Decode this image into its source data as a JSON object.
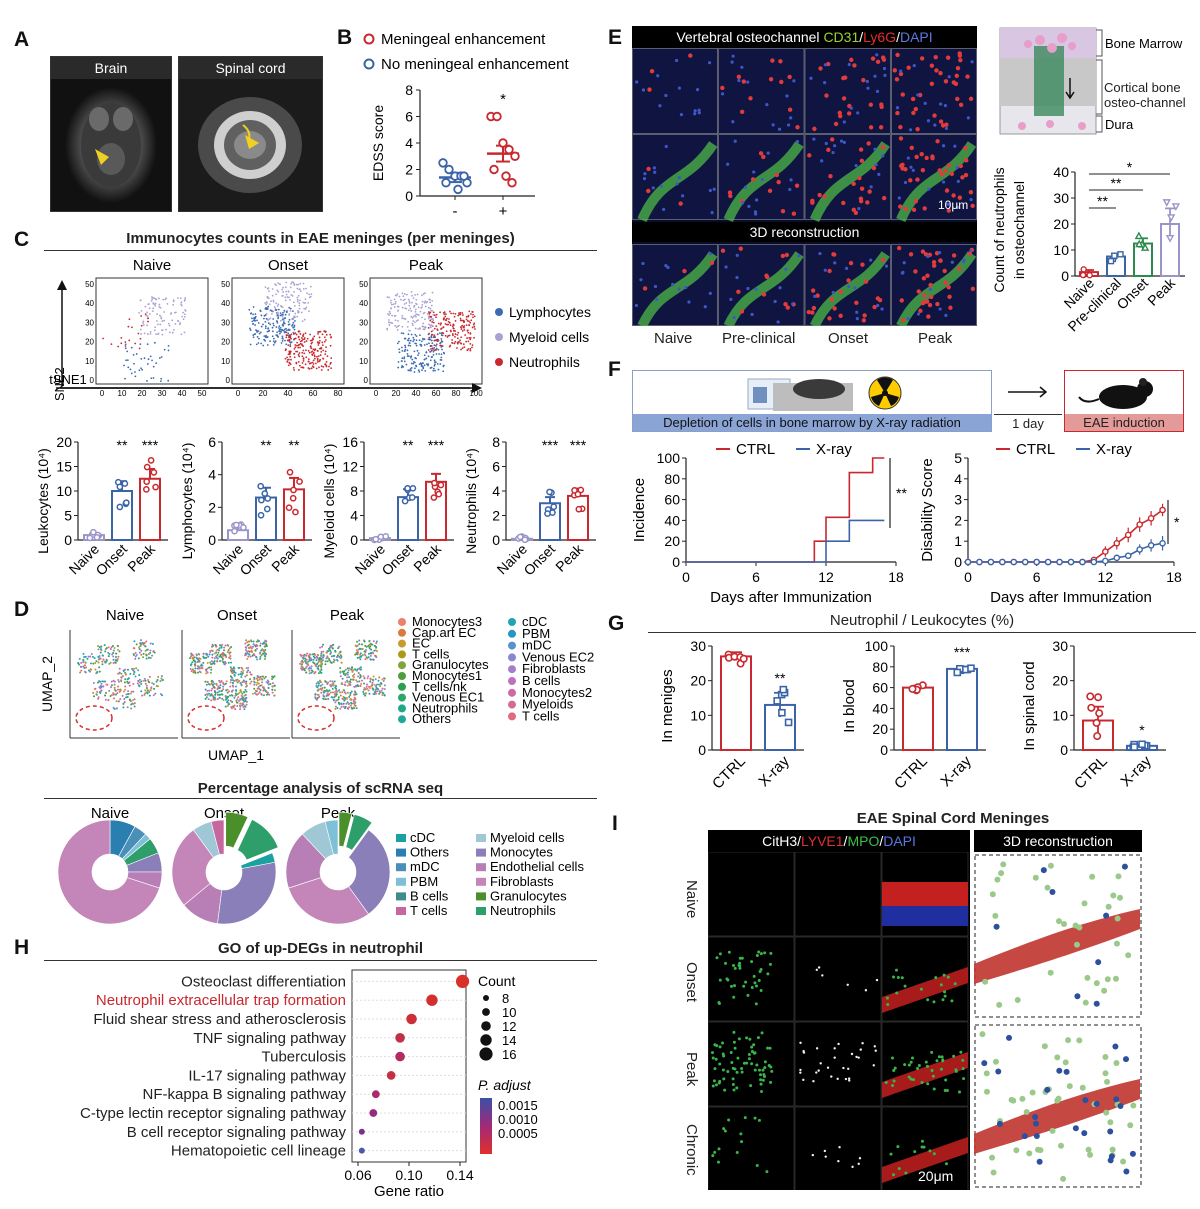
{
  "panel_labels": [
    "A",
    "B",
    "C",
    "D",
    "E",
    "F",
    "G",
    "H",
    "I"
  ],
  "colors": {
    "red": "#c8282e",
    "blue": "#3b64a8",
    "lightblue": "#8d96c8",
    "green": "#2c8a4c",
    "lavender": "#9a95c9",
    "gray": "#666666"
  },
  "A": {
    "brain_label": "Brain",
    "spinal_label": "Spinal cord"
  },
  "B": {
    "legend": [
      "Meningeal enhancement",
      "No meningeal enhancement"
    ],
    "chart_data": {
      "type": "scatter",
      "categories": [
        "-",
        "+"
      ],
      "ylabel": "EDSS score",
      "ylim": [
        0,
        8
      ],
      "yticks": [
        0,
        2,
        4,
        6,
        8
      ],
      "significance": "*",
      "series": [
        {
          "name": "No meningeal enhancement",
          "category": "-",
          "mean": 1.4,
          "sem": 0.35,
          "values": [
            2.5,
            2.0,
            1.5,
            1.5,
            1.0,
            1.0,
            0.5,
            1.5
          ]
        },
        {
          "name": "Meningeal enhancement",
          "category": "+",
          "mean": 3.2,
          "sem": 0.6,
          "values": [
            6.0,
            6.0,
            4.0,
            3.5,
            3.0,
            2.0,
            1.5,
            1.0
          ]
        }
      ]
    }
  },
  "C": {
    "title": "Immunocytes counts in EAE meninges (per meninges)",
    "tsne_groups": [
      "Naive",
      "Onset",
      "Peak"
    ],
    "tsne_xlabel": "tSNE1",
    "tsne_ylabel": "tSNE2",
    "tsne_legend": [
      "Lymphocytes",
      "Myeloid cells",
      "Neutrophils"
    ],
    "tsne_xticks": {
      "naive": [
        "0",
        "10",
        "20",
        "30",
        "40",
        "50"
      ],
      "onset": [
        "0",
        "20",
        "40",
        "60",
        "80"
      ],
      "peak": [
        "0",
        "20",
        "40",
        "60",
        "80",
        "100"
      ]
    },
    "tsne_yticks": [
      "0",
      "10",
      "20",
      "30",
      "40",
      "50"
    ],
    "chart_data": [
      {
        "type": "bar",
        "categories": [
          "Naive",
          "Onset",
          "Peak"
        ],
        "ylabel": "Leukocytes (10⁴)",
        "ylim": [
          0,
          20
        ],
        "yticks": [
          0,
          5,
          10,
          15,
          20
        ],
        "values": [
          1.0,
          10.0,
          12.5
        ],
        "sem": [
          0.3,
          2.0,
          2.0
        ],
        "significance": [
          "",
          "**",
          "***"
        ]
      },
      {
        "type": "bar",
        "categories": [
          "Naive",
          "Onset",
          "Peak"
        ],
        "ylabel": "Lymphocytes (10⁴)",
        "ylim": [
          0,
          6
        ],
        "yticks": [
          0,
          2,
          4,
          6
        ],
        "values": [
          0.6,
          2.6,
          3.1
        ],
        "sem": [
          0.2,
          0.6,
          0.7
        ],
        "significance": [
          "",
          "**",
          "**"
        ]
      },
      {
        "type": "bar",
        "categories": [
          "Naive",
          "Onset",
          "Peak"
        ],
        "ylabel": "Myeloid cells (10⁴)",
        "ylim": [
          0,
          16
        ],
        "yticks": [
          0,
          4,
          8,
          12,
          16
        ],
        "values": [
          0.3,
          7.0,
          9.5
        ],
        "sem": [
          0.2,
          1.3,
          1.3
        ],
        "significance": [
          "",
          "**",
          "***"
        ]
      },
      {
        "type": "bar",
        "categories": [
          "Naive",
          "Onset",
          "Peak"
        ],
        "ylabel": "Neutrophils (10⁴)",
        "ylim": [
          0,
          8
        ],
        "yticks": [
          0,
          2,
          4,
          6,
          8
        ],
        "values": [
          0.1,
          3.0,
          3.6
        ],
        "sem": [
          0.1,
          0.5,
          0.6
        ],
        "significance": [
          "",
          "***",
          "***"
        ]
      }
    ]
  },
  "D": {
    "groups": [
      "Naive",
      "Onset",
      "Peak"
    ],
    "umap_xlabel": "UMAP_1",
    "umap_ylabel": "UMAP_2",
    "legend_col1": [
      {
        "name": "Monocytes3",
        "color": "#e8826b"
      },
      {
        "name": "Cap.art EC",
        "color": "#d97a3a"
      },
      {
        "name": "EC",
        "color": "#c79a2e"
      },
      {
        "name": "T cells",
        "color": "#a99a1e"
      },
      {
        "name": "Granulocytes",
        "color": "#7fa63a"
      },
      {
        "name": "Monocytes1",
        "color": "#4f9e3c"
      },
      {
        "name": "T cells/nk",
        "color": "#2f9e4e"
      },
      {
        "name": "Venous EC1",
        "color": "#2aa86a"
      },
      {
        "name": "Neutrophils",
        "color": "#22a887"
      },
      {
        "name": "Others",
        "color": "#20a89e"
      }
    ],
    "legend_col2": [
      {
        "name": "cDC",
        "color": "#1fa6b5"
      },
      {
        "name": "PBM",
        "color": "#2796c7"
      },
      {
        "name": "mDC",
        "color": "#5a8fd0"
      },
      {
        "name": "Venous EC2",
        "color": "#8a86cf"
      },
      {
        "name": "Fibroblasts",
        "color": "#a67ec8"
      },
      {
        "name": "B cells",
        "color": "#bf70bc"
      },
      {
        "name": "Monocytes2",
        "color": "#cf6aa8"
      },
      {
        "name": "Myeloids",
        "color": "#d66a93"
      },
      {
        "name": "T cells",
        "color": "#df6b7f"
      }
    ],
    "pie_title": "Percentage analysis of scRNA seq",
    "pie_legend_col1": [
      {
        "name": "cDC",
        "color": "#1aa1a0"
      },
      {
        "name": "Others",
        "color": "#2a7fb0"
      },
      {
        "name": "mDC",
        "color": "#4a8fb8"
      },
      {
        "name": "PBM",
        "color": "#7dc0d8"
      },
      {
        "name": "B cells",
        "color": "#3d8b8a"
      },
      {
        "name": "T cells",
        "color": "#c6679f"
      }
    ],
    "pie_legend_col2": [
      {
        "name": "Myeloid cells",
        "color": "#9fc7d6"
      },
      {
        "name": "Monocytes",
        "color": "#8a7fb8"
      },
      {
        "name": "Endothelial cells",
        "color": "#b77fb5"
      },
      {
        "name": "Fibroblasts",
        "color": "#c486b8"
      },
      {
        "name": "Granulocytes",
        "color": "#4a8f2a"
      },
      {
        "name": "Neutrophils",
        "color": "#2e9e6a"
      }
    ]
  },
  "E": {
    "header_parts": [
      "Vertebral osteochannel ",
      "CD31",
      "/",
      "Ly6G",
      "/",
      "DAPI"
    ],
    "scale": "10μm",
    "recon_label": "3D reconstruction",
    "columns": [
      "Naive",
      "Pre-clinical",
      "Onset",
      "Peak"
    ],
    "schematic_labels": [
      "Bone Marrow",
      "Cortical bone osteo-channel",
      "Dura"
    ],
    "chart_data": {
      "type": "bar",
      "categories": [
        "Naive",
        "Pre-clinical",
        "Onset",
        "Peak"
      ],
      "ylabel": "Count of neutrophils in osteochannel",
      "ylim": [
        0,
        40
      ],
      "yticks": [
        0,
        10,
        20,
        30,
        40
      ],
      "values": [
        1.5,
        7.5,
        12.5,
        20
      ],
      "sem": [
        0.8,
        1.2,
        2.0,
        6.0
      ],
      "significance": [
        "**",
        "**",
        "*"
      ]
    }
  },
  "F": {
    "banner_left": "Depletion of cells in bone marrow by X-ray radiation",
    "banner_mid": "1 day",
    "banner_right": "EAE induction",
    "legend": [
      "CTRL",
      "X-ray"
    ],
    "chart_data": [
      {
        "type": "line",
        "title": "",
        "xlabel": "Days after Immunization",
        "ylabel": "Incidence",
        "xlim": [
          0,
          18
        ],
        "ylim": [
          0,
          100
        ],
        "xticks": [
          0,
          6,
          12,
          18
        ],
        "yticks": [
          0,
          20,
          40,
          60,
          80,
          100
        ],
        "significance": "**",
        "series": [
          {
            "name": "CTRL",
            "x": [
              0,
              11,
              11,
              12,
              12,
              14,
              14,
              16,
              16,
              17
            ],
            "y": [
              0,
              0,
              20,
              20,
              43,
              43,
              86,
              86,
              100,
              100
            ]
          },
          {
            "name": "X-ray",
            "x": [
              0,
              12,
              12,
              14,
              14,
              17
            ],
            "y": [
              0,
              0,
              20,
              20,
              40,
              40
            ]
          }
        ]
      },
      {
        "type": "line",
        "title": "",
        "xlabel": "Days after Immunization",
        "ylabel": "Disability Score",
        "xlim": [
          0,
          18
        ],
        "ylim": [
          0,
          5
        ],
        "xticks": [
          0,
          6,
          12,
          18
        ],
        "yticks": [
          0,
          1,
          2,
          3,
          4,
          5
        ],
        "significance": "*",
        "series": [
          {
            "name": "CTRL",
            "x": [
              0,
              1,
              2,
              3,
              4,
              5,
              6,
              7,
              8,
              9,
              10,
              11,
              12,
              13,
              14,
              15,
              16,
              17
            ],
            "y": [
              0,
              0,
              0,
              0,
              0,
              0,
              0,
              0,
              0,
              0,
              0,
              0.1,
              0.5,
              0.9,
              1.3,
              1.8,
              2.1,
              2.5
            ],
            "sem": [
              0,
              0,
              0,
              0,
              0,
              0,
              0,
              0,
              0,
              0,
              0,
              0.1,
              0.25,
              0.3,
              0.35,
              0.35,
              0.35,
              0.3
            ]
          },
          {
            "name": "X-ray",
            "x": [
              0,
              1,
              2,
              3,
              4,
              5,
              6,
              7,
              8,
              9,
              10,
              11,
              12,
              13,
              14,
              15,
              16,
              17
            ],
            "y": [
              0,
              0,
              0,
              0,
              0,
              0,
              0,
              0,
              0,
              0,
              0,
              0,
              0.05,
              0.2,
              0.3,
              0.6,
              0.8,
              0.9
            ],
            "sem": [
              0,
              0,
              0,
              0,
              0,
              0,
              0,
              0,
              0,
              0,
              0,
              0,
              0.05,
              0.1,
              0.15,
              0.25,
              0.3,
              0.35
            ]
          }
        ]
      }
    ]
  },
  "G": {
    "title": "Neutrophil / Leukocytes (%)",
    "chart_data": [
      {
        "type": "bar",
        "categories": [
          "CTRL",
          "X-ray"
        ],
        "ylabel": "In meniges",
        "ylim": [
          0,
          30
        ],
        "yticks": [
          0,
          10,
          20,
          30
        ],
        "values": [
          27,
          13
        ],
        "sem": [
          1.2,
          3.5
        ],
        "significance": [
          "",
          "**"
        ]
      },
      {
        "type": "bar",
        "categories": [
          "CTRL",
          "X-ray"
        ],
        "ylabel": "In blood",
        "ylim": [
          0,
          100
        ],
        "yticks": [
          0,
          20,
          40,
          60,
          80,
          100
        ],
        "values": [
          60,
          78
        ],
        "sem": [
          1.5,
          2.0
        ],
        "significance": [
          "",
          "***"
        ]
      },
      {
        "type": "bar",
        "categories": [
          "CTRL",
          "X-ray"
        ],
        "ylabel": "In spinal cord",
        "ylim": [
          0,
          30
        ],
        "yticks": [
          0,
          10,
          20,
          30
        ],
        "values": [
          8.5,
          1.2
        ],
        "sem": [
          4.0,
          0.3
        ],
        "significance": [
          "",
          "*"
        ]
      }
    ]
  },
  "H": {
    "title": "GO  of up-DEGs in neutrophil",
    "count_title": "Count",
    "count_sizes": [
      8,
      10,
      12,
      14,
      16
    ],
    "padj_title": "P. adjust",
    "padj_ticks": [
      "0.0015",
      "0.0010",
      "0.0005"
    ],
    "chart_data": {
      "type": "scatter",
      "xlabel": "Gene ratio",
      "xlim": [
        0.06,
        0.14
      ],
      "xticks": [
        "0.06",
        "0.10",
        "0.14"
      ],
      "terms": [
        "Osteoclast differentiation",
        "Neutrophil extracellular trap formation",
        "Fluid shear stress and atherosclerosis",
        "TNF signaling pathway",
        "Tuberculosis",
        "IL-17 signaling pathway",
        "NF-kappa B signaling pathway",
        "C-type lectin receptor signaling pathway",
        "B cell receptor signaling pathway",
        "Hematopoietic cell lineage"
      ],
      "x": [
        0.142,
        0.118,
        0.102,
        0.093,
        0.093,
        0.086,
        0.074,
        0.072,
        0.063,
        0.063
      ],
      "count": [
        16,
        14,
        13,
        12,
        12,
        11,
        10,
        10,
        8,
        8
      ],
      "color": [
        "#d9302a",
        "#d2302e",
        "#cc2f38",
        "#c22f48",
        "#b02d62",
        "#c42f44",
        "#a92b6c",
        "#962a80",
        "#7a3090",
        "#4a5aa8"
      ],
      "highlight_index": 1
    }
  },
  "I": {
    "title": "EAE Spinal Cord Meninges",
    "header_parts": [
      "CitH3",
      "/",
      "LYVE1",
      "/",
      "MPO",
      "/",
      "DAPI"
    ],
    "recon_label": "3D reconstruction",
    "rows": [
      "Naive",
      "Onset",
      "Peak",
      "Chronic"
    ],
    "scale": "20μm"
  }
}
